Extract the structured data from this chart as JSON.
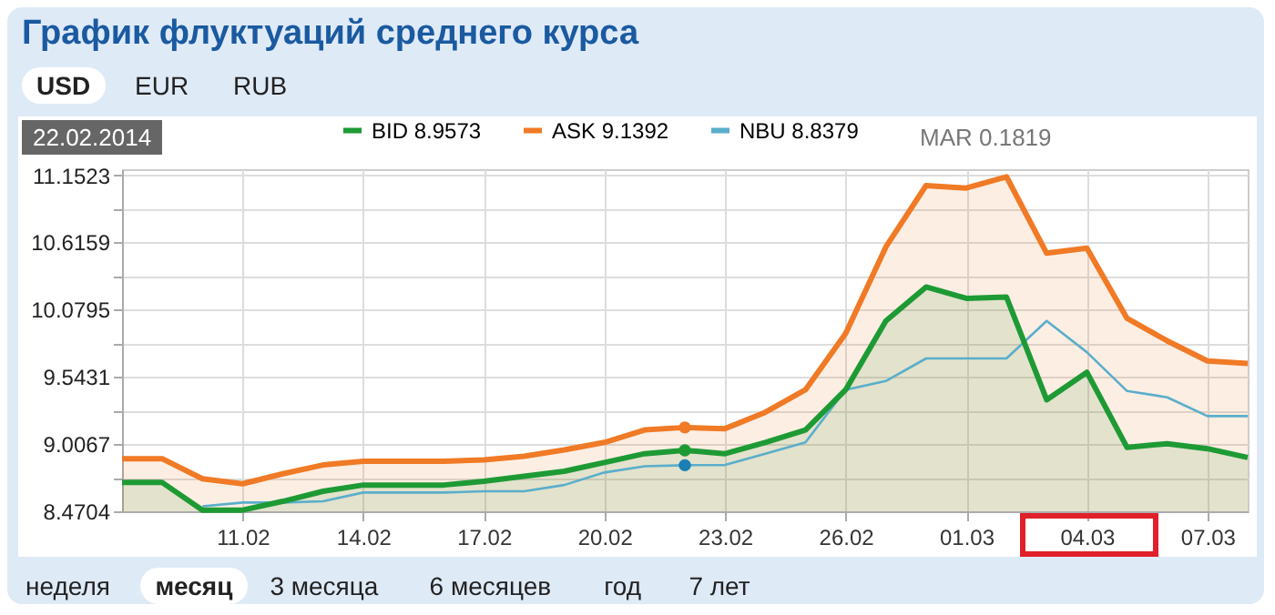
{
  "chart_data": {
    "type": "line",
    "title": "График флуктуаций среднего курса",
    "annotations": [
      "USD",
      "EUR",
      "RUB",
      "22.02.2014",
      "MAR 0.1819",
      "неделя",
      "месяц",
      "3 месяца",
      "6 месяцев",
      "год",
      "7 лет"
    ],
    "x": [
      "2014-02-08",
      "2014-02-09",
      "2014-02-10",
      "2014-02-11",
      "2014-02-12",
      "2014-02-13",
      "2014-02-14",
      "2014-02-15",
      "2014-02-16",
      "2014-02-17",
      "2014-02-18",
      "2014-02-19",
      "2014-02-20",
      "2014-02-21",
      "2014-02-22",
      "2014-02-23",
      "2014-02-24",
      "2014-02-25",
      "2014-02-26",
      "2014-02-27",
      "2014-02-28",
      "2014-03-01",
      "2014-03-02",
      "2014-03-03",
      "2014-03-04",
      "2014-03-05",
      "2014-03-06",
      "2014-03-07",
      "2014-03-08"
    ],
    "series": [
      {
        "name": "BID 8.9573",
        "type": "area",
        "color": "#1e9a35",
        "values": [
          8.7,
          8.7,
          8.48,
          8.48,
          8.55,
          8.63,
          8.68,
          8.68,
          8.68,
          8.71,
          8.75,
          8.79,
          8.86,
          8.93,
          8.9573,
          8.93,
          9.02,
          9.12,
          9.44,
          9.99,
          10.26,
          10.17,
          10.18,
          9.36,
          9.58,
          8.98,
          9.01,
          8.97,
          8.9
        ]
      },
      {
        "name": "ASK 9.1392",
        "type": "area",
        "color": "#f07a25",
        "values": [
          8.89,
          8.89,
          8.73,
          8.69,
          8.77,
          8.84,
          8.87,
          8.87,
          8.87,
          8.88,
          8.91,
          8.96,
          9.02,
          9.12,
          9.1392,
          9.13,
          9.26,
          9.44,
          9.89,
          10.58,
          11.07,
          11.05,
          11.14,
          10.53,
          10.57,
          10.01,
          9.83,
          9.67,
          9.65
        ]
      },
      {
        "name": "NBU 8.8379",
        "color": "#5aaecb",
        "values": [
          null,
          null,
          8.51,
          8.54,
          8.54,
          8.55,
          8.62,
          8.62,
          8.62,
          8.63,
          8.63,
          8.68,
          8.78,
          8.83,
          8.8379,
          8.84,
          8.93,
          9.02,
          9.44,
          9.51,
          9.69,
          9.69,
          9.69,
          9.99,
          9.74,
          9.43,
          9.38,
          9.23,
          9.23
        ]
      },
      {
        "type": "scatter",
        "marker": "circle",
        "color": "#f07a25",
        "x": [
          "2014-02-22"
        ],
        "values": [
          9.1392
        ]
      },
      {
        "type": "scatter",
        "marker": "circle",
        "color": "#1e9a35",
        "x": [
          "2014-02-22"
        ],
        "values": [
          8.9573
        ]
      },
      {
        "type": "scatter",
        "marker": "circle",
        "color": "#1a7fb5",
        "x": [
          "2014-02-22"
        ],
        "values": [
          8.8379
        ]
      }
    ],
    "ylim": [
      8.4704,
      11.2
    ],
    "yticks": [
      8.4704,
      {
        "value": 8.7386,
        "label": null
      },
      9.0067,
      {
        "value": 9.2749,
        "label": null
      },
      9.5431,
      {
        "value": 9.8113,
        "label": null
      },
      10.0795,
      {
        "value": 10.3477,
        "label": null
      },
      10.6159,
      {
        "value": 10.8841,
        "label": null
      },
      11.1523
    ],
    "xlim": [
      "2014-02-08",
      "2014-03-08"
    ],
    "xticks": [
      {
        "value": "2014-02-11",
        "label": "11.02"
      },
      {
        "value": "2014-02-14",
        "label": "14.02"
      },
      {
        "value": "2014-02-17",
        "label": "17.02"
      },
      {
        "value": "2014-02-20",
        "label": "20.02"
      },
      {
        "value": "2014-02-23",
        "label": "23.02"
      },
      {
        "value": "2014-02-26",
        "label": "26.02"
      },
      {
        "value": "2014-03-01",
        "label": "01.03"
      },
      {
        "value": "2014-03-04",
        "label": "04.03"
      },
      {
        "value": "2014-03-07",
        "label": "07.03"
      }
    ],
    "grid": true,
    "legend": "top left",
    "line_style": "solid"
  }
}
